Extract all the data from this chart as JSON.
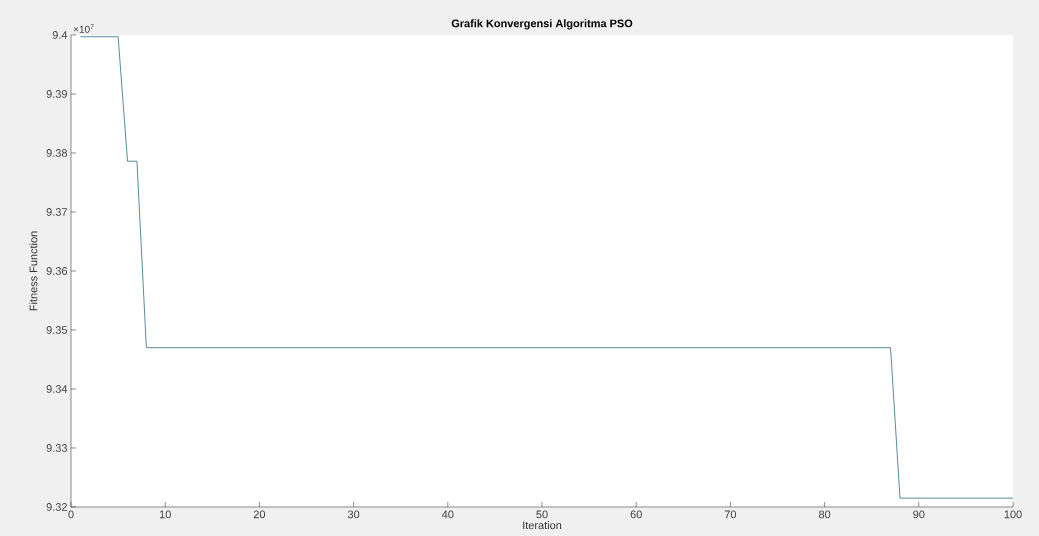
{
  "chart_data": {
    "type": "line",
    "title": "Grafik Konvergensi Algoritma PSO",
    "xlabel": "Iteration",
    "ylabel": "Fitness Function",
    "annotations": [
      "×10$^{7}$"
    ],
    "x": [
      1,
      5,
      6,
      7,
      8,
      87,
      88,
      100
    ],
    "series": [
      {
        "color": "#2f6e86",
        "values": [
          9.3997,
          9.3997,
          9.3786,
          9.3786,
          9.347,
          9.347,
          9.3215,
          9.3215
        ]
      }
    ],
    "xlim": [
      0,
      100
    ],
    "xticks": [
      0,
      10,
      20,
      30,
      40,
      50,
      60,
      70,
      80,
      90,
      100
    ],
    "ylim": [
      9.32,
      9.4
    ],
    "yticks": [
      9.32,
      9.33,
      9.34,
      9.35,
      9.36,
      9.37,
      9.38,
      9.39,
      9.4
    ],
    "marker": "none",
    "line_style": "solid"
  }
}
